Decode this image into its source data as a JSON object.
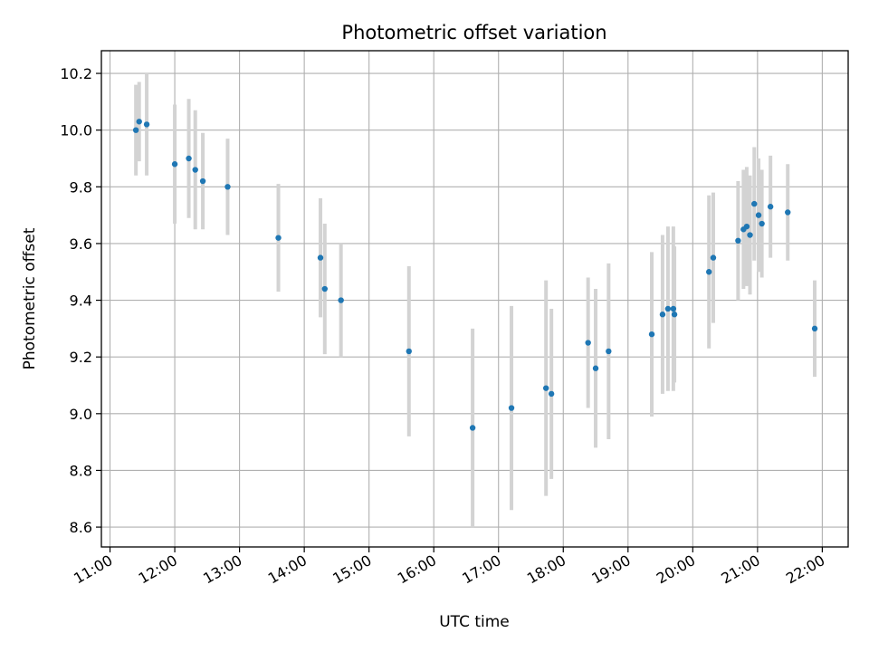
{
  "chart_data": {
    "type": "scatter",
    "title": "Photometric offset variation",
    "xlabel": "UTC time",
    "ylabel": "Photometric offset",
    "xlim": [
      "10:52",
      "22:24"
    ],
    "ylim": [
      8.53,
      10.28
    ],
    "grid": true,
    "x_ticks": [
      "11:00",
      "12:00",
      "13:00",
      "14:00",
      "15:00",
      "16:00",
      "17:00",
      "18:00",
      "19:00",
      "20:00",
      "21:00",
      "22:00"
    ],
    "y_ticks": [
      "8.6",
      "8.8",
      "9.0",
      "9.2",
      "9.4",
      "9.6",
      "9.8",
      "10.0",
      "10.2"
    ],
    "colors": {
      "point": "#1f77b4",
      "errorbar": "#d3d3d3",
      "grid": "#b0b0b0"
    },
    "series": [
      {
        "points": [
          {
            "x": "11:24",
            "y": 10.0,
            "yerr": 0.16
          },
          {
            "x": "11:27",
            "y": 10.03,
            "yerr": 0.14
          },
          {
            "x": "11:34",
            "y": 10.02,
            "yerr": 0.18
          },
          {
            "x": "12:00",
            "y": 9.88,
            "yerr": 0.21
          },
          {
            "x": "12:13",
            "y": 9.9,
            "yerr": 0.21
          },
          {
            "x": "12:19",
            "y": 9.86,
            "yerr": 0.21
          },
          {
            "x": "12:26",
            "y": 9.82,
            "yerr": 0.17
          },
          {
            "x": "12:49",
            "y": 9.8,
            "yerr": 0.17
          },
          {
            "x": "13:36",
            "y": 9.62,
            "yerr": 0.19
          },
          {
            "x": "14:15",
            "y": 9.55,
            "yerr": 0.21
          },
          {
            "x": "14:19",
            "y": 9.44,
            "yerr": 0.23
          },
          {
            "x": "14:34",
            "y": 9.4,
            "yerr": 0.2
          },
          {
            "x": "15:37",
            "y": 9.22,
            "yerr": 0.3
          },
          {
            "x": "16:36",
            "y": 8.95,
            "yerr": 0.35
          },
          {
            "x": "17:12",
            "y": 9.02,
            "yerr": 0.36
          },
          {
            "x": "17:44",
            "y": 9.09,
            "yerr": 0.38
          },
          {
            "x": "17:49",
            "y": 9.07,
            "yerr": 0.3
          },
          {
            "x": "18:23",
            "y": 9.25,
            "yerr": 0.23
          },
          {
            "x": "18:30",
            "y": 9.16,
            "yerr": 0.28
          },
          {
            "x": "18:42",
            "y": 9.22,
            "yerr": 0.31
          },
          {
            "x": "19:22",
            "y": 9.28,
            "yerr": 0.29
          },
          {
            "x": "19:32",
            "y": 9.35,
            "yerr": 0.28
          },
          {
            "x": "19:37",
            "y": 9.37,
            "yerr": 0.29
          },
          {
            "x": "19:42",
            "y": 9.37,
            "yerr": 0.29
          },
          {
            "x": "19:43",
            "y": 9.35,
            "yerr": 0.24
          },
          {
            "x": "20:15",
            "y": 9.5,
            "yerr": 0.27
          },
          {
            "x": "20:19",
            "y": 9.55,
            "yerr": 0.23
          },
          {
            "x": "20:42",
            "y": 9.61,
            "yerr": 0.21
          },
          {
            "x": "20:47",
            "y": 9.65,
            "yerr": 0.21
          },
          {
            "x": "20:50",
            "y": 9.66,
            "yerr": 0.21
          },
          {
            "x": "20:53",
            "y": 9.63,
            "yerr": 0.21
          },
          {
            "x": "20:57",
            "y": 9.74,
            "yerr": 0.2
          },
          {
            "x": "21:01",
            "y": 9.7,
            "yerr": 0.2
          },
          {
            "x": "21:04",
            "y": 9.67,
            "yerr": 0.19
          },
          {
            "x": "21:12",
            "y": 9.73,
            "yerr": 0.18
          },
          {
            "x": "21:28",
            "y": 9.71,
            "yerr": 0.17
          },
          {
            "x": "21:53",
            "y": 9.3,
            "yerr": 0.17
          }
        ]
      }
    ]
  }
}
